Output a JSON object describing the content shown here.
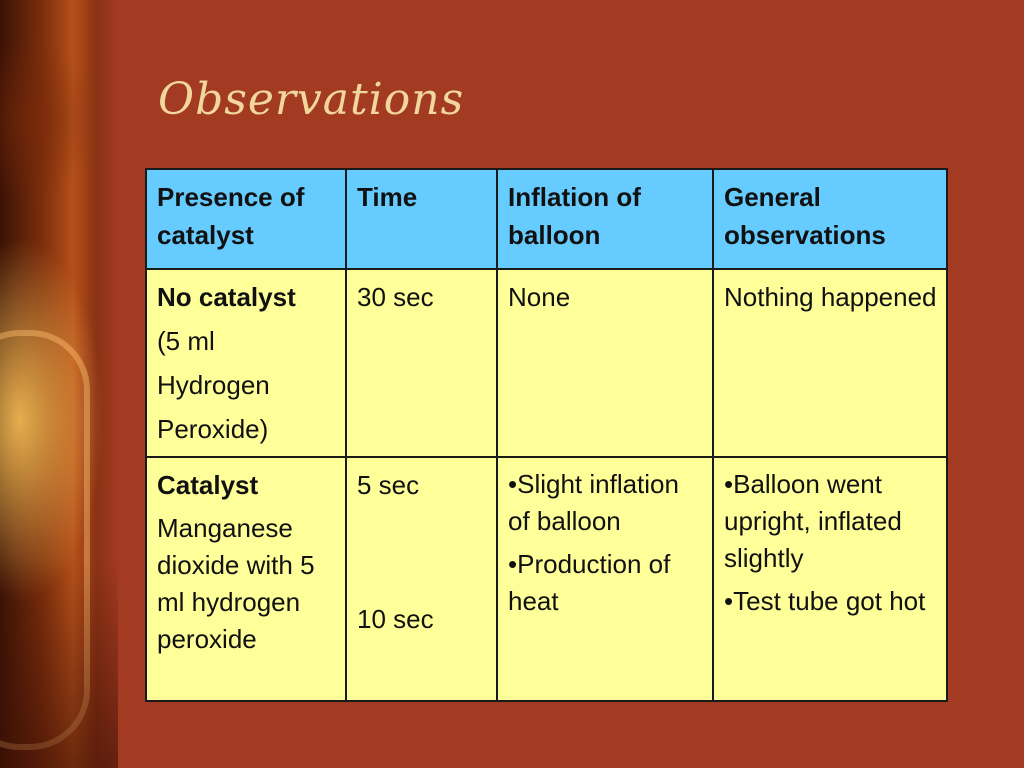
{
  "slide": {
    "title": "Observations",
    "accent_colors": {
      "background": "#a33a22",
      "header": "#66ccff",
      "body": "#ffff99",
      "title": "#f1d79b"
    }
  },
  "table": {
    "headers": [
      "Presence of catalyst",
      "Time",
      "Inflation of balloon",
      "General observations"
    ],
    "row1": {
      "label_bold": "No catalyst",
      "label_lines": [
        "(5 ml",
        "Hydrogen",
        "Peroxide)"
      ],
      "time": "30 sec",
      "inflation": "None",
      "observations": "Nothing happened"
    },
    "row2": {
      "label_bold": "Catalyst",
      "label_text": "Manganese dioxide with 5 ml hydrogen peroxide",
      "time_1": "5 sec",
      "time_2": "10 sec",
      "inflation_1": "•Slight inflation of balloon",
      "inflation_2": "•Production of heat",
      "observations_1": "•Balloon went upright, inflated slightly",
      "observations_2": "•Test tube got hot"
    }
  }
}
